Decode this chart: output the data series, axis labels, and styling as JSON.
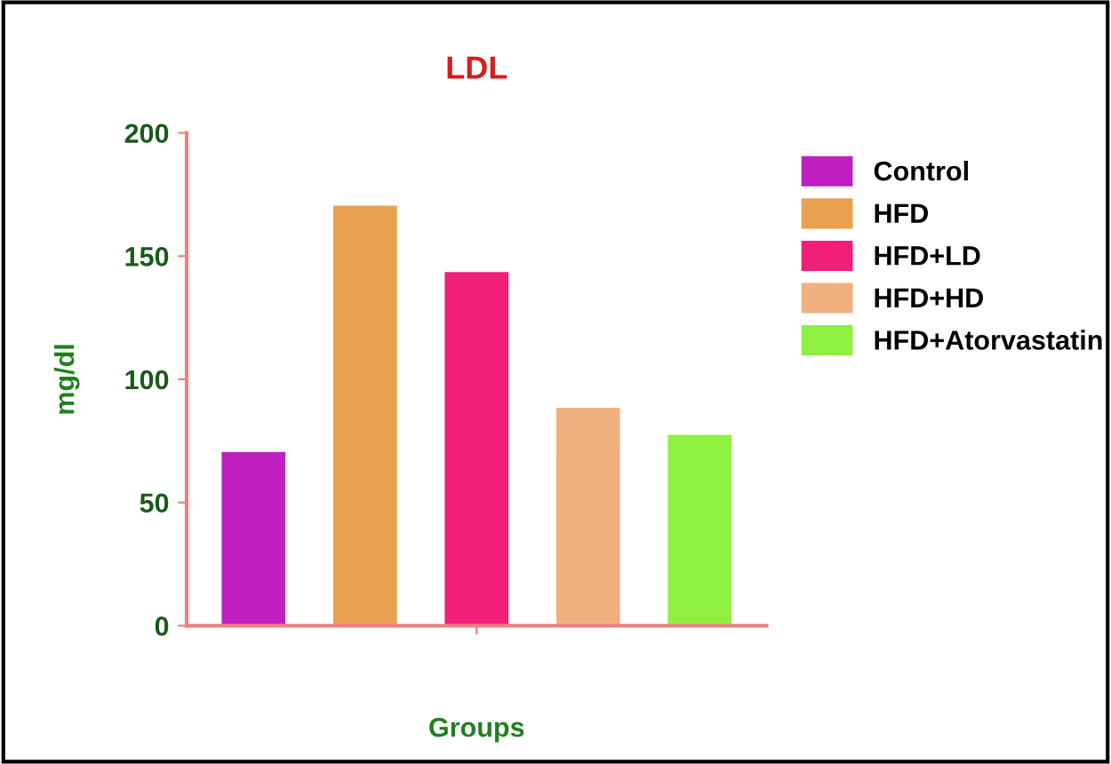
{
  "chart_data": {
    "type": "bar",
    "title": "LDL",
    "xlabel": "Groups",
    "ylabel": "mg/dl",
    "categories": [
      null,
      null,
      null,
      null,
      null
    ],
    "series": [
      {
        "name": "Control",
        "color": "#c020c0",
        "values": [
          70,
          null,
          null,
          null,
          null
        ]
      },
      {
        "name": "HFD",
        "color": "#e8a050",
        "values": [
          null,
          170,
          null,
          null,
          null
        ]
      },
      {
        "name": "HFD+LD",
        "color": "#f0207a",
        "values": [
          null,
          null,
          143,
          null,
          null
        ]
      },
      {
        "name": "HFD+HD",
        "color": "#f0b080",
        "values": [
          null,
          null,
          null,
          88,
          null
        ]
      },
      {
        "name": "HFD+Atorvastatin",
        "color": "#90f040",
        "values": [
          null,
          null,
          null,
          null,
          77
        ]
      }
    ],
    "ylim": [
      0,
      200
    ],
    "yticks": [
      0,
      50,
      100,
      150,
      200
    ],
    "grid": false,
    "legend": "right"
  }
}
